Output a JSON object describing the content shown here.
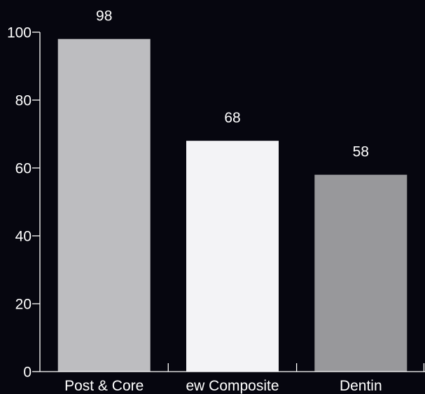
{
  "chart_data": {
    "type": "bar",
    "title": "",
    "xlabel": "",
    "ylabel": "",
    "categories": [
      "Post & Core",
      "ew Composite",
      "Dentin"
    ],
    "values": [
      98,
      68,
      58
    ],
    "data_labels": [
      "98",
      "68",
      "58"
    ],
    "bar_colors": [
      "#bdbdc0",
      "#f3f3f6",
      "#98989b"
    ],
    "ylim": [
      0,
      100
    ],
    "yticks": [
      0,
      20,
      40,
      60,
      80,
      100
    ],
    "ytick_labels": [
      "0",
      "20",
      "40",
      "60",
      "80",
      "100"
    ],
    "grid": false,
    "legend": "none",
    "background_color": "#06060f",
    "axis_color": "#ffffff"
  }
}
